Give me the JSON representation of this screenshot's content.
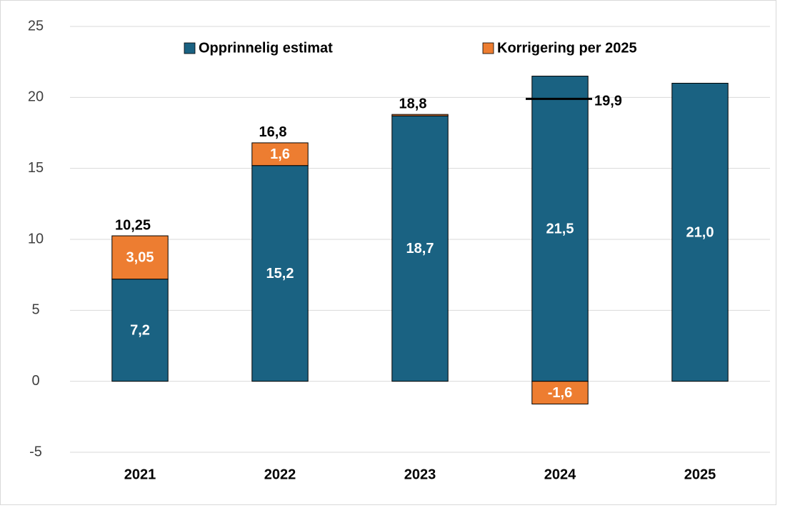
{
  "chart_data": {
    "type": "stacked_bar",
    "categories": [
      "2021",
      "2022",
      "2023",
      "2024",
      "2025"
    ],
    "series": [
      {
        "name": "Opprinnelig estimat",
        "color": "#1a6282",
        "values": [
          7.2,
          15.2,
          18.7,
          21.5,
          21.0
        ],
        "value_labels": [
          "7,2",
          "15,2",
          "18,7",
          "21,5",
          "21,0"
        ]
      },
      {
        "name": "Korrigering per 2025",
        "color": "#ed7d31",
        "values": [
          3.05,
          1.6,
          0.1,
          -1.6,
          null
        ],
        "value_labels": [
          "3,05",
          "1,6",
          null,
          "-1,6",
          null
        ]
      }
    ],
    "totals": {
      "values": [
        10.25,
        16.8,
        18.8,
        19.9,
        null
      ],
      "value_labels": [
        "10,25",
        "16,8",
        "18,8",
        "19,9",
        null
      ]
    },
    "ylim": [
      -5,
      25
    ],
    "yticks": [
      -5,
      0,
      5,
      10,
      15,
      20,
      25
    ],
    "grid": true,
    "legend": "top"
  }
}
